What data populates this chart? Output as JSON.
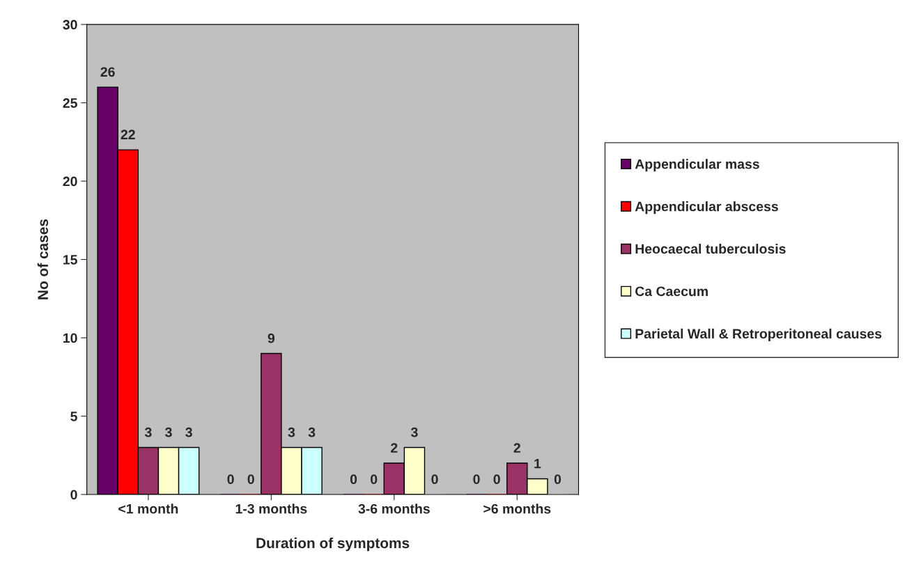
{
  "chart_data": {
    "type": "bar",
    "xlabel": "Duration of symptoms",
    "ylabel": "No of cases",
    "categories": [
      "<1 month",
      "1-3 months",
      "3-6 months",
      ">6 months"
    ],
    "series": [
      {
        "name": "Appendicular mass",
        "color": "#660066",
        "values": [
          26,
          0,
          0,
          0
        ]
      },
      {
        "name": "Appendicular abscess",
        "color": "#ff0000",
        "values": [
          22,
          0,
          0,
          0
        ]
      },
      {
        "name": "Heocaecal tuberculosis",
        "color": "#993366",
        "values": [
          3,
          9,
          2,
          2
        ]
      },
      {
        "name": "Ca Caecum",
        "color": "#ffffcc",
        "values": [
          3,
          3,
          3,
          1
        ]
      },
      {
        "name": "Parietal Wall & Retroperitoneal causes",
        "color": "#ccffff",
        "values": [
          3,
          3,
          0,
          0
        ]
      }
    ],
    "ylim": [
      0,
      30
    ],
    "yticks": [
      0,
      5,
      10,
      15,
      20,
      25,
      30
    ],
    "data_labels": true,
    "grid": false,
    "legend": "right"
  }
}
